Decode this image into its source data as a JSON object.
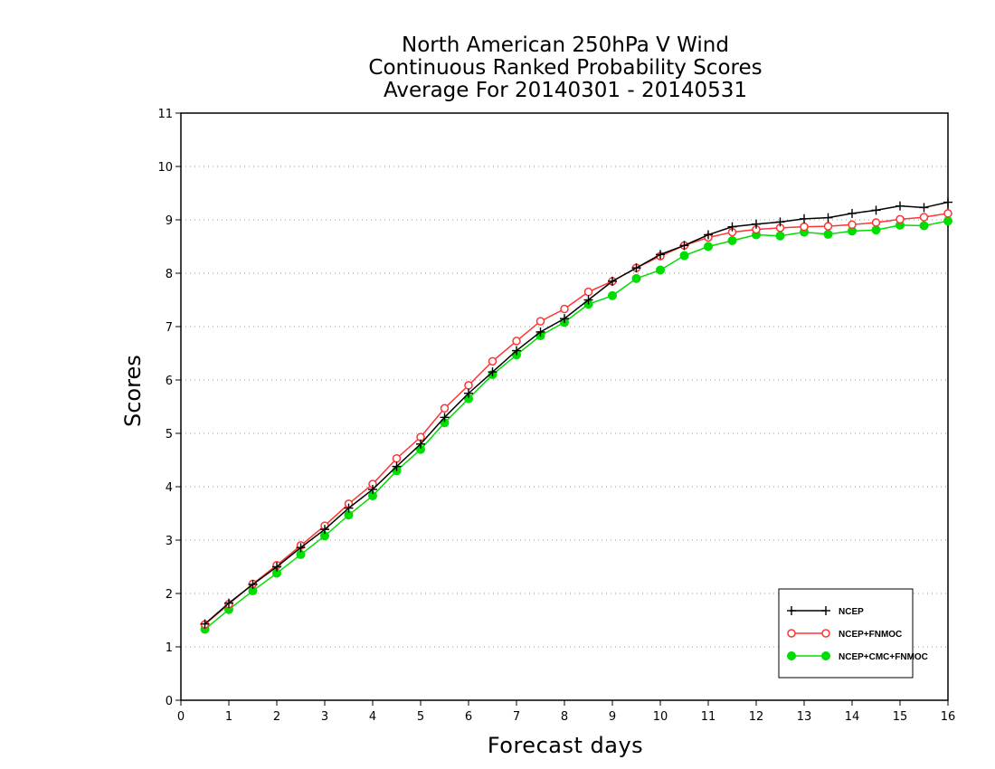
{
  "chart_data": {
    "type": "line",
    "title_lines": [
      "North American 250hPa V Wind",
      "Continuous Ranked Probability Scores",
      "Average For 20140301 - 20140531"
    ],
    "xlabel": "Forecast days",
    "ylabel": "Scores",
    "xlim": [
      0,
      16
    ],
    "ylim": [
      0,
      11
    ],
    "x_ticks": [
      "0",
      "1",
      "2",
      "3",
      "4",
      "5",
      "6",
      "7",
      "8",
      "9",
      "10",
      "11",
      "12",
      "13",
      "14",
      "15",
      "16"
    ],
    "y_ticks": [
      "0",
      "1",
      "2",
      "3",
      "4",
      "5",
      "6",
      "7",
      "8",
      "9",
      "10",
      "11"
    ],
    "grid": "horizontal dotted",
    "legend_position": "bottom-right",
    "x": [
      0.5,
      1,
      1.5,
      2,
      2.5,
      3,
      3.5,
      4,
      4.5,
      5,
      5.5,
      6,
      6.5,
      7,
      7.5,
      8,
      8.5,
      9,
      9.5,
      10,
      10.5,
      11,
      11.5,
      12,
      12.5,
      13,
      13.5,
      14,
      14.5,
      15,
      15.5,
      16
    ],
    "series": [
      {
        "name": "NCEP",
        "color": "#000000",
        "marker": "plus",
        "values": [
          1.43,
          1.82,
          2.17,
          2.5,
          2.86,
          3.2,
          3.6,
          3.95,
          4.38,
          4.8,
          5.3,
          5.75,
          6.15,
          6.55,
          6.9,
          7.15,
          7.5,
          7.85,
          8.1,
          8.35,
          8.52,
          8.72,
          8.87,
          8.92,
          8.96,
          9.02,
          9.04,
          9.12,
          9.18,
          9.26,
          9.23,
          9.33
        ]
      },
      {
        "name": "NCEP+FNMOC",
        "color": "#ff3333",
        "marker": "open-circle",
        "values": [
          1.42,
          1.8,
          2.18,
          2.53,
          2.9,
          3.27,
          3.68,
          4.05,
          4.53,
          4.93,
          5.47,
          5.9,
          6.35,
          6.73,
          7.1,
          7.33,
          7.65,
          7.85,
          8.1,
          8.32,
          8.52,
          8.67,
          8.77,
          8.82,
          8.85,
          8.87,
          8.88,
          8.91,
          8.95,
          9.01,
          9.05,
          9.12
        ]
      },
      {
        "name": "NCEP+CMC+FNMOC",
        "color": "#00dd00",
        "marker": "filled-circle",
        "values": [
          1.33,
          1.7,
          2.05,
          2.38,
          2.73,
          3.08,
          3.47,
          3.83,
          4.3,
          4.7,
          5.2,
          5.65,
          6.1,
          6.47,
          6.83,
          7.08,
          7.42,
          7.58,
          7.9,
          8.06,
          8.33,
          8.5,
          8.61,
          8.72,
          8.7,
          8.77,
          8.73,
          8.79,
          8.81,
          8.9,
          8.89,
          8.98
        ]
      }
    ]
  }
}
